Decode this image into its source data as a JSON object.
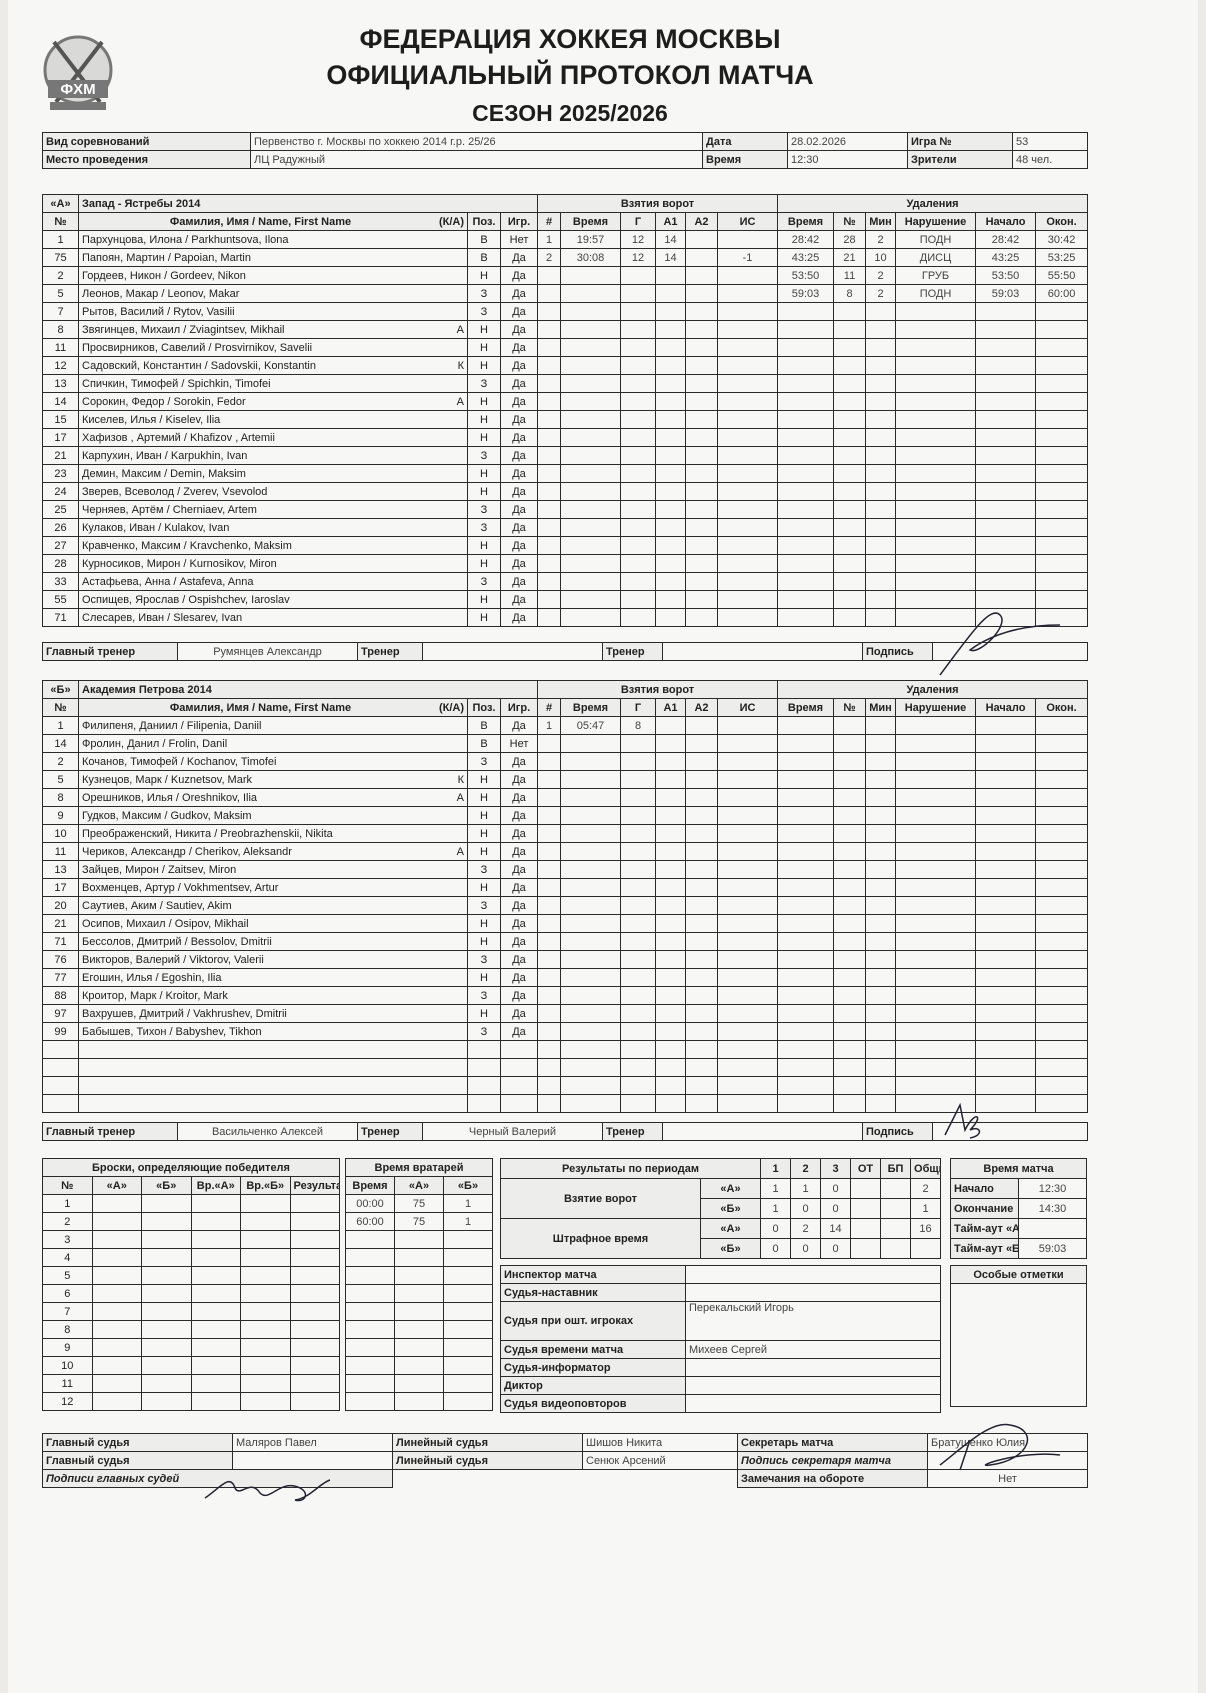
{
  "header": {
    "logo_text": "ФХМ",
    "title_line1": "ФЕДЕРАЦИЯ ХОККЕЯ МОСКВЫ",
    "title_line2": "ОФИЦИАЛЬНЫЙ ПРОТОКОЛ МАТЧА",
    "title_line3": "СЕЗОН 2025/2026"
  },
  "info": {
    "competition_label": "Вид соревнований",
    "competition": "Первенство г. Москвы по хоккею 2014 г.р. 25/26",
    "venue_label": "Место проведения",
    "venue": "ЛЦ Радужный",
    "date_label": "Дата",
    "date": "28.02.2026",
    "time_label": "Время",
    "time": "12:30",
    "game_label": "Игра №",
    "game": "53",
    "spectators_label": "Зрители",
    "spectators": "48 чел."
  },
  "labels": {
    "goals_title": "Взятия ворот",
    "penalties_title": "Удаления",
    "col_num": "№",
    "col_name": "Фамилия, Имя / Name, First Name",
    "col_ka": "(К/А)",
    "col_pos": "Поз.",
    "col_played": "Игр.",
    "goal_cols": [
      "#",
      "Время",
      "Г",
      "А1",
      "А2",
      "ИС"
    ],
    "pen_cols": [
      "Время",
      "№",
      "Мин",
      "Нарушение",
      "Начало",
      "Окон."
    ],
    "head_coach": "Главный тренер",
    "coach": "Тренер",
    "signature": "Подпись"
  },
  "team_a": {
    "letter": "«А»",
    "name": "Запад - Ястребы 2014",
    "players": [
      [
        "1",
        "Пархунцова, Илона / Parkhuntsova, Ilona",
        "",
        "В",
        "Нет"
      ],
      [
        "75",
        "Папоян, Мартин / Papoian, Martin",
        "",
        "В",
        "Да"
      ],
      [
        "2",
        "Гордеев, Никон / Gordeev, Nikon",
        "",
        "Н",
        "Да"
      ],
      [
        "5",
        "Леонов, Макар / Leonov, Makar",
        "",
        "З",
        "Да"
      ],
      [
        "7",
        "Рытов, Василий / Rytov, Vasilii",
        "",
        "З",
        "Да"
      ],
      [
        "8",
        "Звягинцев, Михаил / Zviagintsev, Mikhail",
        "А",
        "Н",
        "Да"
      ],
      [
        "11",
        "Просвирников, Савелий / Prosvirnikov, Savelii",
        "",
        "Н",
        "Да"
      ],
      [
        "12",
        "Садовский, Константин / Sadovskii, Konstantin",
        "К",
        "Н",
        "Да"
      ],
      [
        "13",
        "Спичкин, Тимофей / Spichkin, Timofei",
        "",
        "З",
        "Да"
      ],
      [
        "14",
        "Сорокин, Федор / Sorokin, Fedor",
        "А",
        "Н",
        "Да"
      ],
      [
        "15",
        "Киселев, Илья / Kiselev, Ilia",
        "",
        "Н",
        "Да"
      ],
      [
        "17",
        "Хафизов , Артемий / Khafizov , Artemii",
        "",
        "Н",
        "Да"
      ],
      [
        "21",
        "Карпухин, Иван / Karpukhin, Ivan",
        "",
        "З",
        "Да"
      ],
      [
        "23",
        "Демин, Максим / Demin, Maksim",
        "",
        "Н",
        "Да"
      ],
      [
        "24",
        "Зверев, Всеволод / Zverev, Vsevolod",
        "",
        "Н",
        "Да"
      ],
      [
        "25",
        "Черняев, Артём / Cherniaev, Artem",
        "",
        "З",
        "Да"
      ],
      [
        "26",
        "Кулаков, Иван / Kulakov, Ivan",
        "",
        "З",
        "Да"
      ],
      [
        "27",
        "Кравченко, Максим / Kravchenko, Maksim",
        "",
        "Н",
        "Да"
      ],
      [
        "28",
        "Курносиков, Мирон / Kurnosikov, Miron",
        "",
        "Н",
        "Да"
      ],
      [
        "33",
        "Астафьева, Анна / Astafeva, Anna",
        "",
        "З",
        "Да"
      ],
      [
        "55",
        "Оспищев, Ярослав / Ospishchev, Iaroslav",
        "",
        "Н",
        "Да"
      ],
      [
        "71",
        "Слесарев, Иван / Slesarev, Ivan",
        "",
        "Н",
        "Да"
      ]
    ],
    "goals": [
      [
        "1",
        "19:57",
        "12",
        "14",
        "",
        ""
      ],
      [
        "2",
        "30:08",
        "12",
        "14",
        "",
        "-1"
      ]
    ],
    "penalties": [
      [
        "28:42",
        "28",
        "2",
        "ПОДН",
        "28:42",
        "30:42"
      ],
      [
        "43:25",
        "21",
        "10",
        "ДИСЦ",
        "43:25",
        "53:25"
      ],
      [
        "53:50",
        "11",
        "2",
        "ГРУБ",
        "53:50",
        "55:50"
      ],
      [
        "59:03",
        "8",
        "2",
        "ПОДН",
        "59:03",
        "60:00"
      ]
    ],
    "head_coach": "Румянцев Александр",
    "coach1": "",
    "coach2": ""
  },
  "team_b": {
    "letter": "«Б»",
    "name": "Академия Петрова 2014",
    "players": [
      [
        "1",
        "Филипеня, Даниил / Filipenia, Daniil",
        "",
        "В",
        "Да"
      ],
      [
        "14",
        "Фролин, Данил / Frolin, Danil",
        "",
        "В",
        "Нет"
      ],
      [
        "2",
        "Кочанов, Тимофей / Kochanov, Timofei",
        "",
        "З",
        "Да"
      ],
      [
        "5",
        "Кузнецов, Марк / Kuznetsov, Mark",
        "К",
        "Н",
        "Да"
      ],
      [
        "8",
        "Орешников, Илья / Oreshnikov, Ilia",
        "А",
        "Н",
        "Да"
      ],
      [
        "9",
        "Гудков, Максим / Gudkov, Maksim",
        "",
        "Н",
        "Да"
      ],
      [
        "10",
        "Преображенский, Никита / Preobrazhenskii, Nikita",
        "",
        "Н",
        "Да"
      ],
      [
        "11",
        "Чериков, Александр / Cherikov, Aleksandr",
        "А",
        "Н",
        "Да"
      ],
      [
        "13",
        "Зайцев, Мирон / Zaitsev, Miron",
        "",
        "З",
        "Да"
      ],
      [
        "17",
        "Вохменцев, Артур / Vokhmentsev, Artur",
        "",
        "Н",
        "Да"
      ],
      [
        "20",
        "Саутиев, Аким / Sautiev, Akim",
        "",
        "З",
        "Да"
      ],
      [
        "21",
        "Осипов, Михаил / Osipov, Mikhail",
        "",
        "Н",
        "Да"
      ],
      [
        "71",
        "Бессолов, Дмитрий / Bessolov, Dmitrii",
        "",
        "Н",
        "Да"
      ],
      [
        "76",
        "Викторов, Валерий / Viktorov, Valerii",
        "",
        "З",
        "Да"
      ],
      [
        "77",
        "Егошин, Илья / Egoshin, Ilia",
        "",
        "Н",
        "Да"
      ],
      [
        "88",
        "Кроитор, Марк / Kroitor, Mark",
        "",
        "З",
        "Да"
      ],
      [
        "97",
        "Вахрушев, Дмитрий / Vakhrushev, Dmitrii",
        "",
        "Н",
        "Да"
      ],
      [
        "99",
        "Бабышев, Тихон / Babyshev, Tikhon",
        "",
        "З",
        "Да"
      ]
    ],
    "goals": [
      [
        "1",
        "05:47",
        "8",
        "",
        "",
        ""
      ]
    ],
    "penalties": [],
    "head_coach": "Васильченко Алексей",
    "coach1": "Черный Валерий",
    "coach2": ""
  },
  "shootout": {
    "title": "Броски, определяющие победителя",
    "cols": [
      "№",
      "«А»",
      "«Б»",
      "Вр.«А»",
      "Вр.«Б»",
      "Результат"
    ],
    "rows": [
      "1",
      "2",
      "3",
      "4",
      "5",
      "6",
      "7",
      "8",
      "9",
      "10",
      "11",
      "12"
    ]
  },
  "goalies": {
    "title": "Время вратарей",
    "cols": [
      "Время",
      "«А»",
      "«Б»"
    ],
    "rows": [
      [
        "00:00",
        "75",
        "1"
      ],
      [
        "60:00",
        "75",
        "1"
      ]
    ]
  },
  "results": {
    "title": "Результаты по периодам",
    "cols": [
      "1",
      "2",
      "3",
      "ОТ",
      "БП",
      "Общий"
    ],
    "goals_label": "Взятие ворот",
    "pen_label": "Штрафное время",
    "team_a": "«А»",
    "team_b": "«Б»",
    "goals_a": [
      "1",
      "1",
      "0",
      "",
      "",
      "2"
    ],
    "goals_b": [
      "1",
      "0",
      "0",
      "",
      "",
      "1"
    ],
    "pen_a": [
      "0",
      "2",
      "14",
      "",
      "",
      "16"
    ],
    "pen_b": [
      "0",
      "0",
      "0",
      "",
      "",
      ""
    ]
  },
  "match_time": {
    "title": "Время матча",
    "start_label": "Начало",
    "start": "12:30",
    "end_label": "Окончание",
    "end": "14:30",
    "timeout_a_label": "Тайм-аут «А»",
    "timeout_a": "",
    "timeout_b_label": "Тайм-аут «Б»",
    "timeout_b": "59:03"
  },
  "officials": [
    [
      "Инспектор матча",
      ""
    ],
    [
      "Судья-наставник",
      ""
    ],
    [
      "Судья при ошт. игроках",
      "Перекальский Игорь"
    ],
    [
      "Судья времени матча",
      "Михеев Сергей"
    ],
    [
      "Судья-информатор",
      ""
    ],
    [
      "Диктор",
      ""
    ],
    [
      "Судья видеоповторов",
      ""
    ]
  ],
  "special_notes": {
    "title": "Особые отметки"
  },
  "referees": {
    "main1_label": "Главный судья",
    "main1": "Маляров Павел",
    "main2_label": "Главный судья",
    "main2": "",
    "signatures_label": "Подписи главных судей",
    "line1_label": "Линейный судья",
    "line1": "Шишов Никита",
    "line2_label": "Линейный судья",
    "line2": "Сенюк Арсений",
    "secretary_label": "Секретарь матча",
    "secretary": "Братушенко Юлия",
    "secretary_sign_label": "Подпись секретаря матча",
    "remarks_label": "Замечания на обороте",
    "remarks": "Нет"
  }
}
